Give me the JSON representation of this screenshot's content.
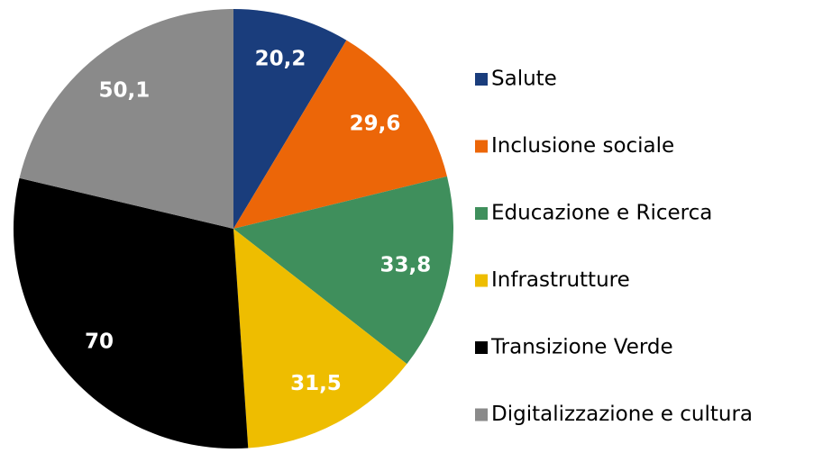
{
  "chart_data": {
    "type": "pie",
    "categories": [
      "Salute",
      "Inclusione sociale",
      "Educazione e Ricerca",
      "Infrastrutture",
      "Transizione Verde",
      "Digitalizzazione e cultura"
    ],
    "values": [
      20.2,
      29.6,
      33.8,
      31.5,
      70,
      50.1
    ],
    "value_labels": [
      "20,2",
      "29,6",
      "33,8",
      "31,5",
      "70",
      "50,1"
    ],
    "colors": [
      "#1a3d7c",
      "#ec6608",
      "#3f8f5c",
      "#eebd00",
      "#000000",
      "#8a8a8a"
    ],
    "legend": "right"
  }
}
